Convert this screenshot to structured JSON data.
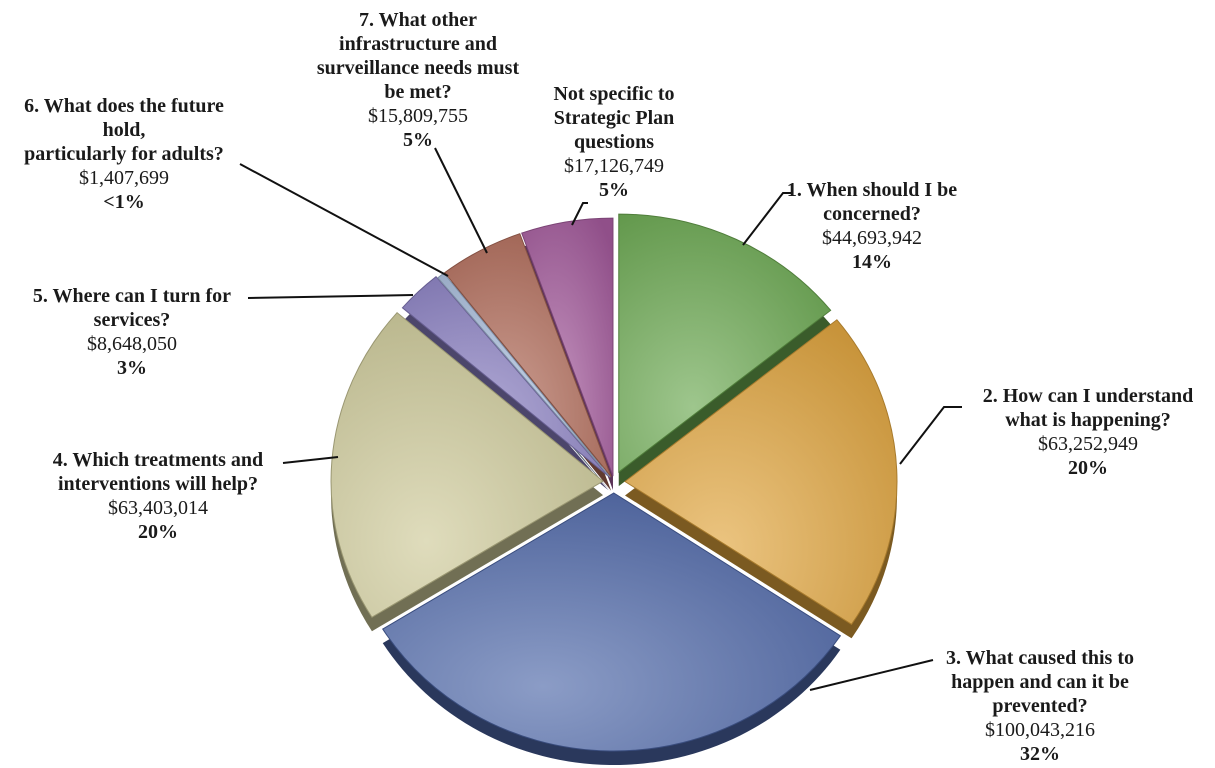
{
  "chart_data": {
    "type": "pie",
    "title": "",
    "start_angle_deg": 0,
    "direction": "clockwise",
    "slices": [
      {
        "name": "1. When should I be concerned?",
        "lines": [
          "1. When should I be",
          "concerned?"
        ],
        "amount": "$44,693,942",
        "value": 44693942,
        "percent_label": "14%",
        "color": "#6aa84f"
      },
      {
        "name": "2. How can I understand what is happening?",
        "lines": [
          "2. How can I understand",
          "what is happening?"
        ],
        "amount": "$63,252,949",
        "value": 63252949,
        "percent_label": "20%",
        "color": "#e0a43c"
      },
      {
        "name": "3. What caused this to happen and can it be prevented?",
        "lines": [
          "3. What caused this to",
          "happen and can it be",
          "prevented?"
        ],
        "amount": "$100,043,216",
        "value": 100043216,
        "percent_label": "32%",
        "color": "#4d66a8"
      },
      {
        "name": "4. Which treatments and interventions will help?",
        "lines": [
          "4. Which treatments and",
          "interventions will help?"
        ],
        "amount": "$63,403,014",
        "value": 63403014,
        "percent_label": "20%",
        "color": "#cdc998"
      },
      {
        "name": "5. Where can I turn for services?",
        "lines": [
          "5. Where can I turn for",
          "services?"
        ],
        "amount": "$8,648,050",
        "value": 8648050,
        "percent_label": "3%",
        "color": "#8a7fc2"
      },
      {
        "name": "6. What does the future hold, particularly for adults?",
        "lines": [
          "6. What does the future",
          "hold,",
          "particularly for adults?"
        ],
        "amount": "$1,407,699",
        "value": 1407699,
        "percent_label": "<1%",
        "color": "#a9bedd"
      },
      {
        "name": "7. What other infrastructure and surveillance needs must be met?",
        "lines": [
          "7. What other",
          "infrastructure and",
          "surveillance needs must",
          "be met?"
        ],
        "amount": "$15,809,755",
        "value": 15809755,
        "percent_label": "5%",
        "color": "#b06a58"
      },
      {
        "name": "Not specific to Strategic Plan questions",
        "lines": [
          "Not specific to",
          "Strategic Plan",
          "questions"
        ],
        "amount": "$17,126,749",
        "value": 17126749,
        "percent_label": "5%",
        "color": "#a45a9c"
      }
    ]
  }
}
